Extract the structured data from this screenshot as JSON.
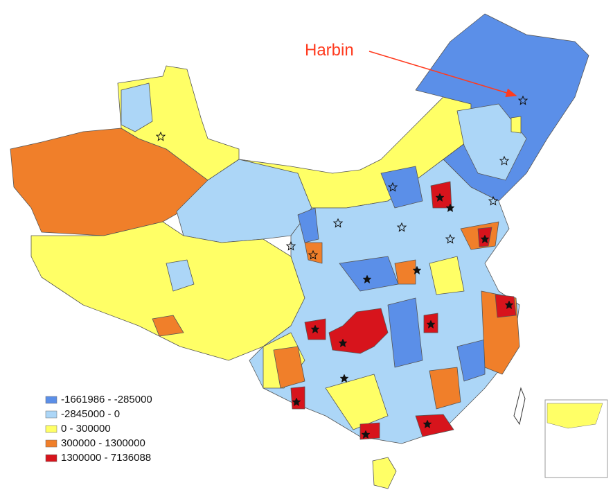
{
  "annotation": {
    "label": "Harbin",
    "color": "#ff3b1f"
  },
  "legend": {
    "items": [
      {
        "label": "-1661986 - -285000",
        "color": "#5b8fe8"
      },
      {
        "label": "-2845000 - 0",
        "color": "#acd6f7"
      },
      {
        "label": "0 - 300000",
        "color": "#ffff66"
      },
      {
        "label": "300000 - 1300000",
        "color": "#f07f2a"
      },
      {
        "label": "1300000 - 7136088",
        "color": "#d7141c"
      }
    ]
  }
}
